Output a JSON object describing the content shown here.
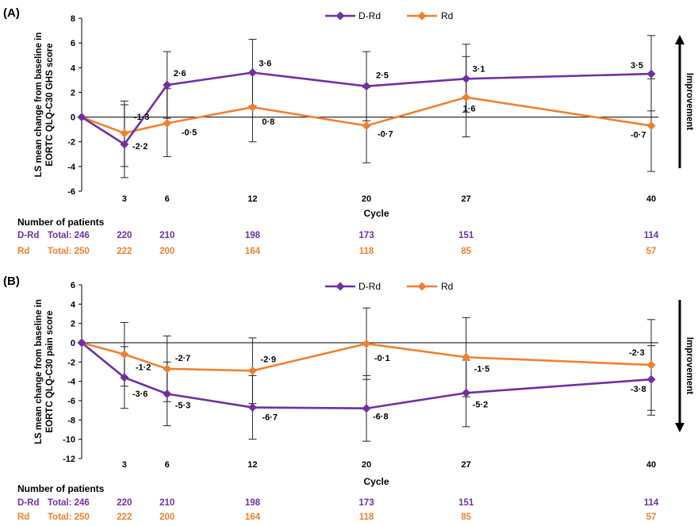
{
  "colors": {
    "d_rd": "#7030a0",
    "rd": "#f08030",
    "axis": "#000000"
  },
  "chart_data": [
    {
      "type": "line",
      "panel_label": "(A)",
      "title": "",
      "ylabel_lines": [
        "LS mean change from baseline in",
        "EORTC QLQ-C30 GHS score"
      ],
      "xlabel": "Cycle",
      "x": [
        0,
        3,
        6,
        12,
        20,
        27,
        40
      ],
      "xticks": [
        3,
        6,
        12,
        20,
        27,
        40
      ],
      "xtick_labels": [
        "3",
        "6",
        "12",
        "20",
        "27",
        "40"
      ],
      "ylim": [
        -6,
        8
      ],
      "yticks": [
        -6,
        -4,
        -2,
        0,
        2,
        4,
        6,
        8
      ],
      "ytick_labels": [
        "-6",
        "-4",
        "-2",
        "0",
        "2",
        "4",
        "6",
        "8"
      ],
      "improvement_label": "Improvement",
      "improvement_direction": "up",
      "series": [
        {
          "name": "D-Rd",
          "color_key": "d_rd",
          "values": [
            0,
            -2.2,
            2.6,
            3.6,
            2.5,
            3.1,
            3.5
          ],
          "err_upper": [
            0,
            1.3,
            5.3,
            6.3,
            5.3,
            5.9,
            6.6
          ],
          "err_lower": [
            0,
            -4.9,
            -0.1,
            0.9,
            -0.3,
            0.4,
            0.5
          ],
          "labels": [
            "",
            "-2·2",
            "2·6",
            "3·6",
            "2·5",
            "3·1",
            "3·5"
          ]
        },
        {
          "name": "Rd",
          "color_key": "rd",
          "values": [
            0,
            -1.3,
            -0.5,
            0.8,
            -0.7,
            1.6,
            -0.7
          ],
          "err_upper": [
            0,
            1.0,
            2.3,
            3.6,
            2.4,
            4.9,
            3.1
          ],
          "err_lower": [
            0,
            -4.0,
            -3.2,
            -2.0,
            -3.7,
            -1.6,
            -4.4
          ],
          "labels": [
            "",
            "-1·3",
            "-0·5",
            "0·8",
            "-0·7",
            "1·6",
            "-0·7"
          ]
        }
      ],
      "number_of_patients": {
        "header": "Number of patients",
        "rows": [
          {
            "series": "D-Rd",
            "total": "Total: 246",
            "counts": [
              "220",
              "210",
              "198",
              "173",
              "151",
              "114"
            ]
          },
          {
            "series": "Rd",
            "total": "Total: 250",
            "counts": [
              "222",
              "200",
              "164",
              "118",
              "85",
              "57"
            ]
          }
        ]
      }
    },
    {
      "type": "line",
      "panel_label": "(B)",
      "title": "",
      "ylabel_lines": [
        "LS mean change from baseline in",
        "EORTC QLQ-C30 pain score"
      ],
      "xlabel": "Cycle",
      "x": [
        0,
        3,
        6,
        12,
        20,
        27,
        40
      ],
      "xticks": [
        3,
        6,
        12,
        20,
        27,
        40
      ],
      "xtick_labels": [
        "3",
        "6",
        "12",
        "20",
        "27",
        "40"
      ],
      "ylim": [
        -12,
        6
      ],
      "yticks": [
        -12,
        -10,
        -8,
        -6,
        -4,
        -2,
        0,
        2,
        4,
        6
      ],
      "ytick_labels": [
        "-12",
        "-10",
        "-8",
        "-6",
        "-4",
        "-2",
        "0",
        "2",
        "4",
        "6"
      ],
      "improvement_label": "Improvement",
      "improvement_direction": "down",
      "series": [
        {
          "name": "D-Rd",
          "color_key": "d_rd",
          "values": [
            0,
            -3.6,
            -5.3,
            -6.7,
            -6.8,
            -5.2,
            -3.8
          ],
          "err_upper": [
            0,
            -0.4,
            -2.0,
            -3.4,
            -3.4,
            -1.8,
            -0.3
          ],
          "err_lower": [
            0,
            -6.8,
            -8.6,
            -10.0,
            -10.2,
            -8.7,
            -7.5
          ],
          "labels": [
            "",
            "-3·6",
            "-5·3",
            "-6·7",
            "-6·8",
            "-5·2",
            "-3·8"
          ]
        },
        {
          "name": "Rd",
          "color_key": "rd",
          "values": [
            0,
            -1.2,
            -2.7,
            -2.9,
            -0.1,
            -1.5,
            -2.3
          ],
          "err_upper": [
            0,
            2.1,
            0.7,
            0.5,
            3.6,
            2.6,
            2.4
          ],
          "err_lower": [
            0,
            -4.5,
            -6.1,
            -6.3,
            -3.8,
            -5.6,
            -7.0
          ],
          "labels": [
            "",
            "-1·2",
            "-2·7",
            "-2·9",
            "-0·1",
            "-1·5",
            "-2·3"
          ]
        }
      ],
      "number_of_patients": {
        "header": "Number of patients",
        "rows": [
          {
            "series": "D-Rd",
            "total": "Total: 246",
            "counts": [
              "220",
              "210",
              "198",
              "173",
              "151",
              "114"
            ]
          },
          {
            "series": "Rd",
            "total": "Total: 250",
            "counts": [
              "222",
              "200",
              "164",
              "118",
              "85",
              "57"
            ]
          }
        ]
      }
    }
  ]
}
